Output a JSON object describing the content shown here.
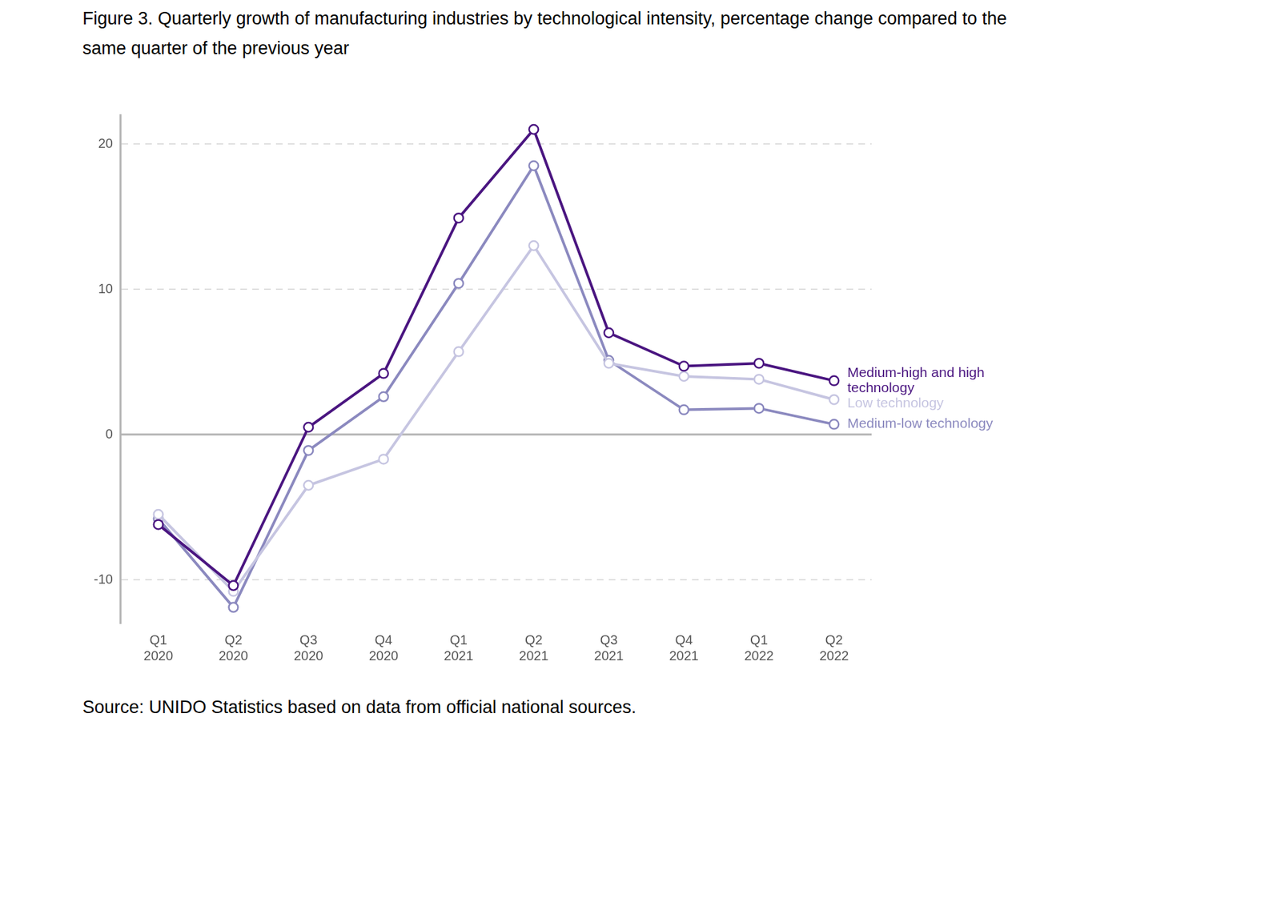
{
  "chart_data": {
    "type": "line",
    "title": "Figure 3. Quarterly growth of manufacturing industries by technological intensity, percentage change compared to the same quarter of the previous year",
    "note": "Source: UNIDO Statistics based on data from official national sources.",
    "categories": [
      "Q1 2020",
      "Q2 2020",
      "Q3 2020",
      "Q4 2020",
      "Q1 2021",
      "Q2 2021",
      "Q3 2021",
      "Q4 2021",
      "Q1 2022",
      "Q2 2022"
    ],
    "series": [
      {
        "name": "Medium-high and high technology",
        "color": "#4a1580",
        "values": [
          -6.2,
          -10.4,
          0.5,
          4.2,
          14.9,
          21.0,
          7.0,
          4.7,
          4.9,
          3.7
        ]
      },
      {
        "name": "Low technology",
        "color": "#c6c5e1",
        "values": [
          -5.5,
          -10.8,
          -3.5,
          -1.7,
          5.7,
          13.0,
          4.9,
          4.0,
          3.8,
          2.4
        ]
      },
      {
        "name": "Medium-low technology",
        "color": "#8b89bf",
        "values": [
          -5.8,
          -11.9,
          -1.1,
          2.6,
          10.4,
          18.5,
          5.1,
          1.7,
          1.8,
          0.7
        ]
      }
    ],
    "ylim": [
      -13,
      22
    ],
    "yticks": [
      -10,
      0,
      10,
      20
    ],
    "grid": true,
    "legend": "right",
    "marker": "circle"
  }
}
